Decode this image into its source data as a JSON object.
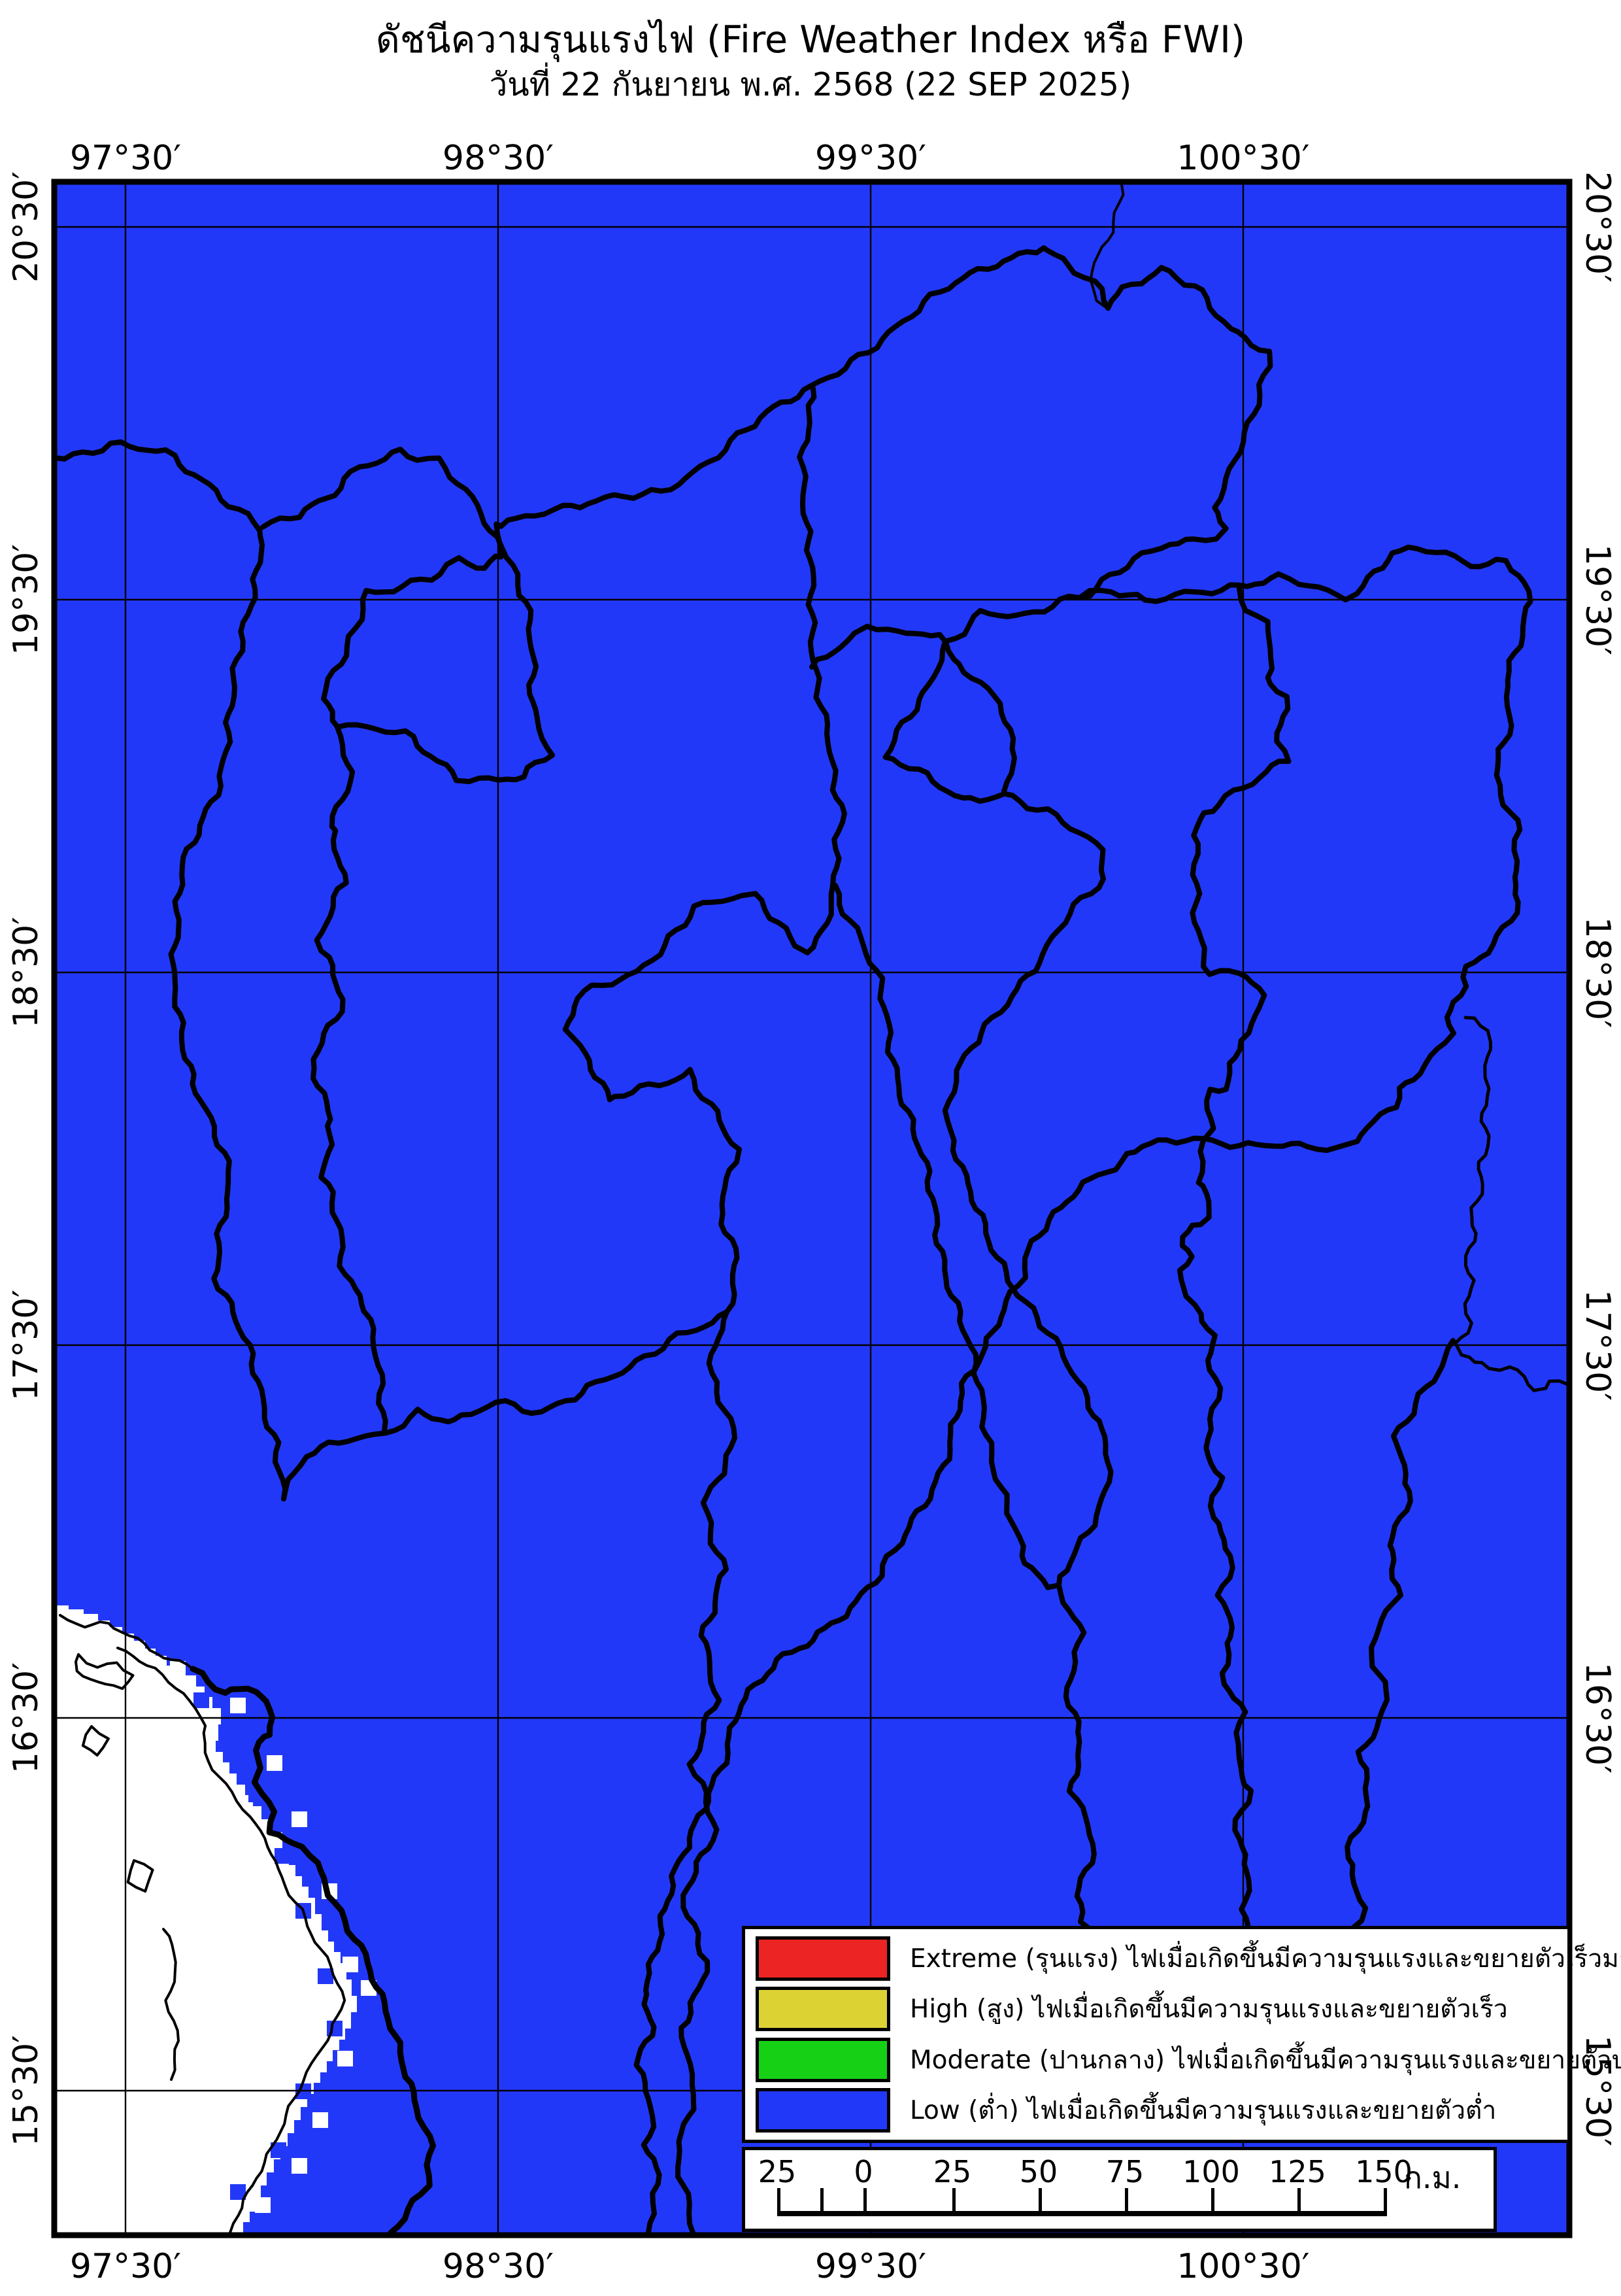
{
  "title": "ดัชนีความรุนแรงไฟ (Fire Weather Index หรือ FWI)",
  "subtitle": "วันที่ 22 กันยายน พ.ศ. 2568 (22 SEP 2025)",
  "axes": {
    "lon": [
      "97°30′",
      "98°30′",
      "99°30′",
      "100°30′"
    ],
    "lat": [
      "20°30′",
      "19°30′",
      "18°30′",
      "17°30′",
      "16°30′",
      "15°30′"
    ]
  },
  "legend": {
    "items": [
      {
        "name": "extreme",
        "color": "#ec2424",
        "label": "Extreme (รุนแรง) ไฟเมื่อเกิดขึ้นมีความรุนแรงและขยายตัวเร็วมาก"
      },
      {
        "name": "high",
        "color": "#ddd234",
        "label": "High (สูง) ไฟเมื่อเกิดขึ้นมีความรุนแรงและขยายตัวเร็ว"
      },
      {
        "name": "moderate",
        "color": "#16d016",
        "label": "Moderate (ปานกลาง) ไฟเมื่อเกิดขึ้นมีความรุนแรงและขยายตัวปานกลาง"
      },
      {
        "name": "low",
        "color": "#2238f8",
        "label": "Low (ต่ำ) ไฟเมื่อเกิดขึ้นมีความรุนแรงและขยายตัวต่ำ"
      }
    ]
  },
  "scalebar": {
    "labels": [
      "25",
      "0",
      "25",
      "50",
      "75",
      "100",
      "125",
      "150"
    ],
    "unit": "ก.ม."
  },
  "map": {
    "fill_color": "#2238f8",
    "nodata_color": "#ffffff",
    "boundary_color": "#000000",
    "grid_color": "#000000"
  }
}
